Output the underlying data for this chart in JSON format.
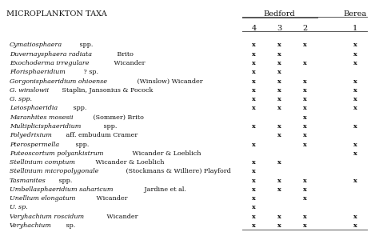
{
  "title_left": "MICROPLANKTON TAXA",
  "col_headers_top": [
    "Bedford",
    "Berea"
  ],
  "col_headers_sub": [
    "4",
    "3",
    "2",
    "1"
  ],
  "rows": [
    {
      "italic": "Cymatiosphaera",
      " spp.": "",
      "roman": " spp.",
      "cols": [
        1,
        1,
        1,
        1
      ]
    },
    {
      "italic": "Duvernaysphaera radiata",
      "roman": " Brito",
      "cols": [
        1,
        1,
        0,
        1
      ]
    },
    {
      "italic": "Exochoderma irregulare",
      "roman": " Wicander",
      "cols": [
        1,
        1,
        1,
        1
      ]
    },
    {
      "italic": "Florisphaeridium",
      "roman": " ? sp.",
      "cols": [
        1,
        1,
        0,
        0
      ]
    },
    {
      "italic": "Gorgonisphaeridium ohioense",
      "roman": " (Winslow) Wicander",
      "cols": [
        1,
        1,
        1,
        1
      ]
    },
    {
      "italic": "G. winslowii",
      "roman": " Staplin, Jansonius & Pocock",
      "cols": [
        1,
        1,
        1,
        1
      ]
    },
    {
      "italic": "G. spp.",
      "roman": "",
      "cols": [
        1,
        1,
        1,
        1
      ]
    },
    {
      "italic": "Leiosphaeridia",
      "roman": " spp.",
      "cols": [
        1,
        1,
        1,
        1
      ]
    },
    {
      "italic": "Maranhites mosesii",
      "roman": " (Sommer) Brito",
      "cols": [
        0,
        0,
        1,
        0
      ]
    },
    {
      "italic": "Multiplicisphaeridium",
      "roman": " spp.",
      "cols": [
        1,
        1,
        1,
        1
      ]
    },
    {
      "italic": "Polyedrixium",
      "roman": " aff. embudum Cramer",
      "cols": [
        0,
        1,
        1,
        0
      ]
    },
    {
      "italic": "Pterospermella",
      "roman": " spp.",
      "cols": [
        1,
        0,
        1,
        1
      ]
    },
    {
      "italic": "Puteoscortum polyankistrum",
      "roman": " Wicander & Loeblich",
      "cols": [
        0,
        0,
        0,
        1
      ]
    },
    {
      "italic": "Stellinium comptum",
      "roman": " Wicander & Loeblich",
      "cols": [
        1,
        1,
        0,
        0
      ]
    },
    {
      "italic": "Stellinium micropolygonale",
      "roman": " (Stockmans & Williere) Playford",
      "cols": [
        1,
        0,
        0,
        0
      ]
    },
    {
      "italic": "Tasmanites",
      "roman": " spp.",
      "cols": [
        1,
        1,
        1,
        1
      ]
    },
    {
      "italic": "Umbellasphaeridium saharicum",
      "roman": " Jardine et al.",
      "cols": [
        1,
        1,
        1,
        0
      ]
    },
    {
      "italic": "Unellium elongatum",
      "roman": " Wicander",
      "cols": [
        1,
        0,
        1,
        0
      ]
    },
    {
      "italic": "U. sp.",
      "roman": "",
      "cols": [
        1,
        0,
        0,
        0
      ]
    },
    {
      "italic": "Veryhachium roscidum",
      "roman": " Wicander",
      "cols": [
        1,
        1,
        1,
        1
      ]
    },
    {
      "italic": "Veryhachium",
      "roman": " sp.",
      "cols": [
        1,
        1,
        1,
        1
      ]
    }
  ],
  "bg_color": "#ffffff",
  "text_color": "#111111",
  "line_color": "#555555",
  "font_size": 5.8,
  "header_font_size": 7.0
}
